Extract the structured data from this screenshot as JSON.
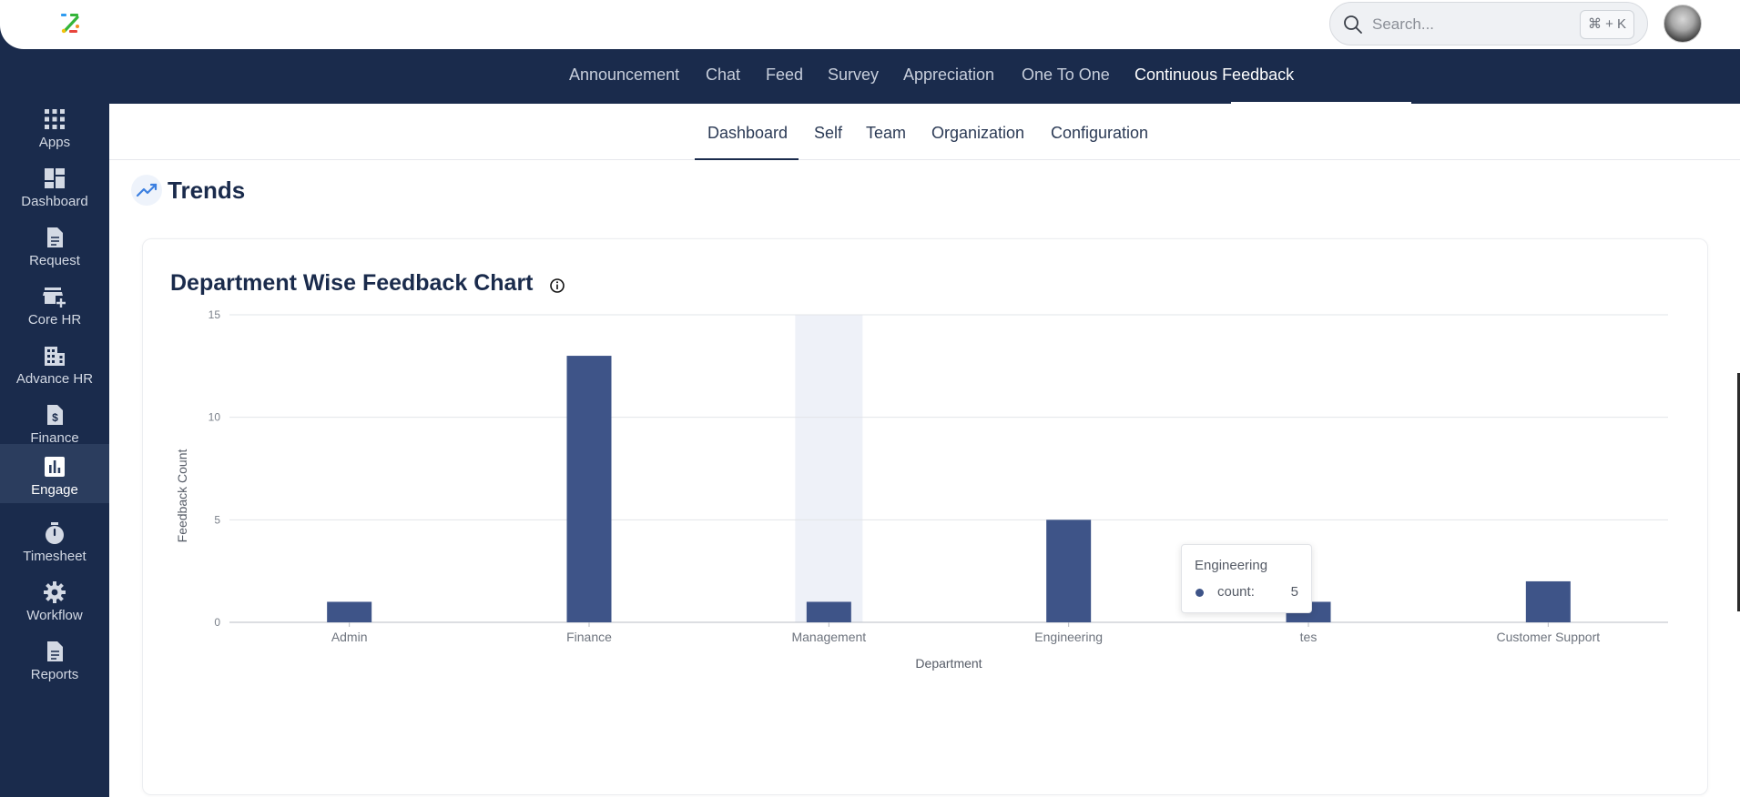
{
  "header": {
    "search_placeholder": "Search...",
    "search_shortcut": "⌘ + K"
  },
  "topnav": {
    "items": [
      {
        "label": "Announcement"
      },
      {
        "label": "Chat"
      },
      {
        "label": "Feed"
      },
      {
        "label": "Survey"
      },
      {
        "label": "Appreciation"
      },
      {
        "label": "One To One"
      },
      {
        "label": "Continuous Feedback"
      }
    ],
    "active": "Continuous Feedback"
  },
  "sidebar": {
    "items": [
      {
        "label": "Apps",
        "icon": "apps-grid-icon"
      },
      {
        "label": "Dashboard",
        "icon": "dashboard-icon"
      },
      {
        "label": "Request",
        "icon": "document-icon"
      },
      {
        "label": "Core HR",
        "icon": "store-add-icon"
      },
      {
        "label": "Advance HR",
        "icon": "building-icon"
      },
      {
        "label": "Finance",
        "icon": "dollar-document-icon"
      },
      {
        "label": "Engage",
        "icon": "bar-chart-icon"
      },
      {
        "label": "Timesheet",
        "icon": "timer-icon"
      },
      {
        "label": "Workflow",
        "icon": "gear-icon"
      },
      {
        "label": "Reports",
        "icon": "report-icon"
      }
    ],
    "active": "Engage"
  },
  "subnav": {
    "items": [
      {
        "label": "Dashboard"
      },
      {
        "label": "Self"
      },
      {
        "label": "Team"
      },
      {
        "label": "Organization"
      },
      {
        "label": "Configuration"
      }
    ],
    "active": "Dashboard"
  },
  "section": {
    "title": "Trends"
  },
  "card": {
    "title": "Department Wise Feedback Chart"
  },
  "chart_data": {
    "type": "bar",
    "categories": [
      "Admin",
      "Finance",
      "Management",
      "Engineering",
      "tes",
      "Customer Support"
    ],
    "series": [
      {
        "name": "count",
        "values": [
          1,
          13,
          1,
          5,
          1,
          2
        ]
      }
    ],
    "xlabel": "Department",
    "ylabel": "Feedback Count",
    "ylim": [
      0,
      15
    ],
    "yticks": [
      0,
      5,
      10,
      15
    ],
    "grid": true,
    "highlighted_category": "Management",
    "bar_color": "#3e5488",
    "highlight_color": "#eef1f8"
  },
  "tooltip": {
    "title": "Engineering",
    "label": "count:",
    "value": "5"
  },
  "colors": {
    "navy": "#1a2b4c",
    "sidebar_active": "#2b3d5e",
    "accent_bar": "#3e5488"
  }
}
